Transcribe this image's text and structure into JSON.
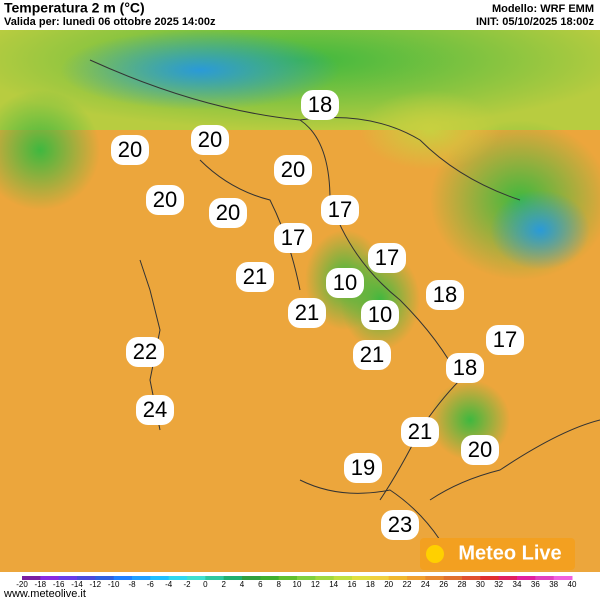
{
  "header": {
    "title": "Temperatura 2 m (°C)",
    "valid": "Valida per: lunedì 06 ottobre 2025 14:00z",
    "model": "Modello: WRF EMM",
    "init": "INIT: 05/10/2025 18:00z"
  },
  "map": {
    "labels": [
      18,
      20,
      20,
      20,
      20,
      20,
      17,
      17,
      17,
      21,
      10,
      18,
      21,
      10,
      17,
      22,
      21,
      18,
      24,
      21,
      20,
      19,
      23
    ]
  },
  "colorbar": {
    "ticks": [
      -20,
      -18,
      -16,
      -14,
      -12,
      -10,
      -8,
      -6,
      -4,
      -2,
      0,
      2,
      4,
      6,
      8,
      10,
      12,
      14,
      16,
      18,
      20,
      22,
      24,
      26,
      28,
      30,
      32,
      34,
      36,
      38,
      40
    ],
    "colors": [
      "#7a1fa2",
      "#8a2be2",
      "#6a3de8",
      "#4b4bdc",
      "#3060e0",
      "#2080ff",
      "#20a0ff",
      "#20c0ff",
      "#30d8f0",
      "#40e0d0",
      "#30c8a0",
      "#20b070",
      "#30a040",
      "#40b030",
      "#60c030",
      "#80d040",
      "#a0d840",
      "#c0e040",
      "#e0e040",
      "#f0d040",
      "#f0b830",
      "#f0a030",
      "#e88830",
      "#e07030",
      "#e05030",
      "#e03030",
      "#e02060",
      "#e020a0",
      "#e040c0",
      "#f060e0"
    ]
  },
  "footer": {
    "url": "www.meteolive.it",
    "logo": "Meteo Live"
  }
}
